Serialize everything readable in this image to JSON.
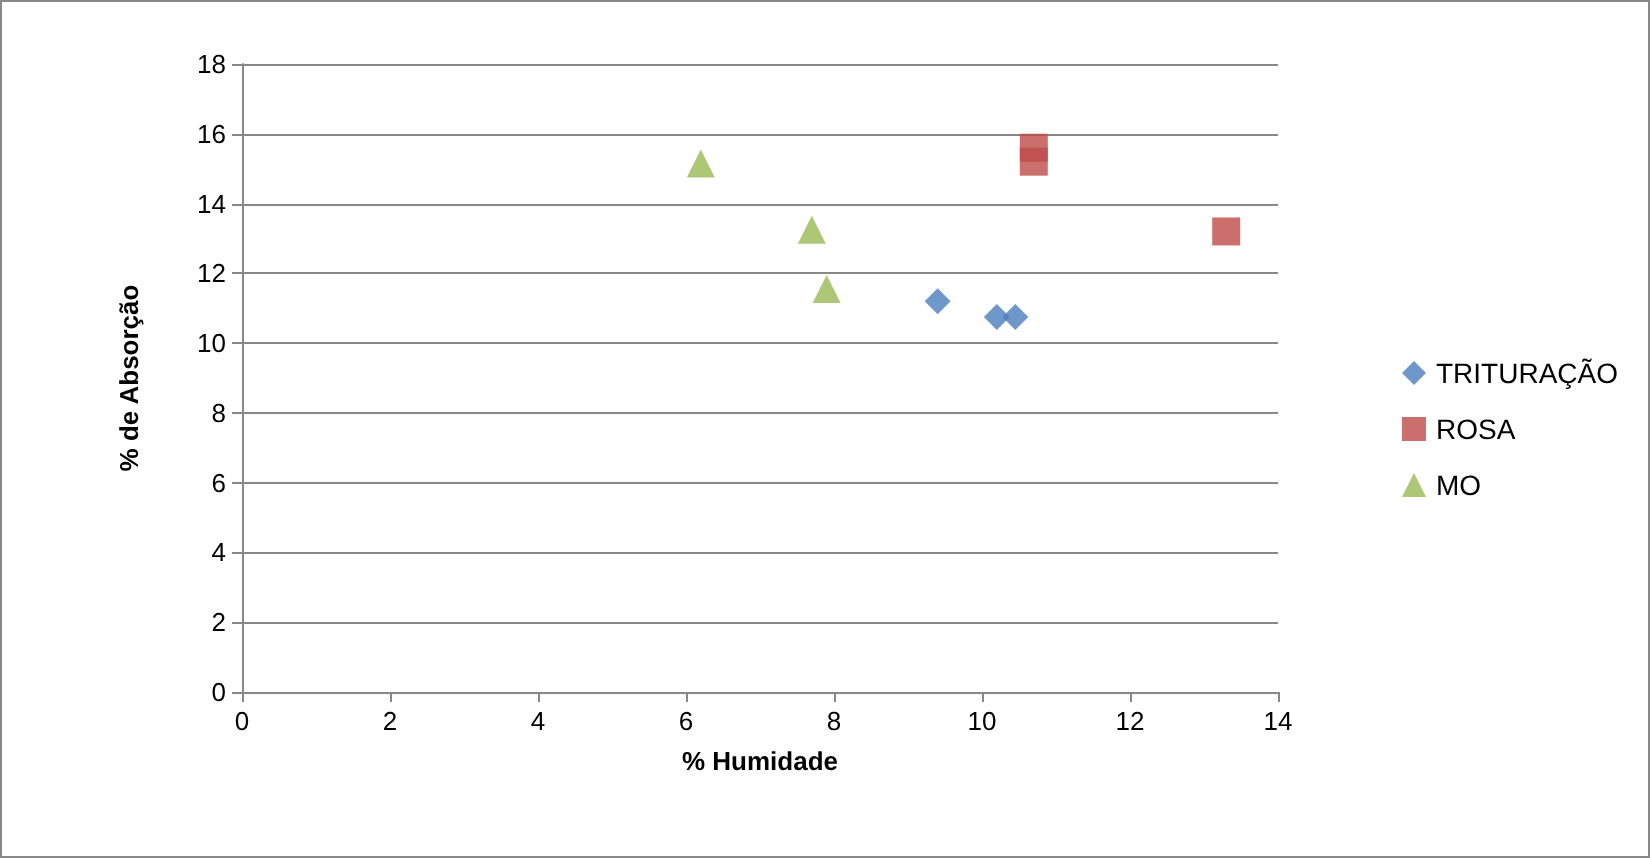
{
  "chart_data": {
    "type": "scatter",
    "xlabel": "% Humidade",
    "ylabel": "% de Absorção",
    "xlim": [
      0,
      14
    ],
    "xticks": [
      0,
      2,
      4,
      6,
      8,
      10,
      12,
      14
    ],
    "ylim": [
      0,
      18
    ],
    "yticks": [
      0,
      2,
      4,
      6,
      8,
      10,
      12,
      14,
      16,
      18
    ],
    "grid": "y",
    "legend": "right",
    "series": [
      {
        "name": "TRITURAÇÃO",
        "color": "#4a7ebb",
        "marker": "diamond",
        "x": [
          9.4,
          10.2,
          10.45
        ],
        "values": [
          11.2,
          10.75,
          10.75
        ]
      },
      {
        "name": "ROSA",
        "color": "#be4b48",
        "marker": "square",
        "x": [
          10.7,
          10.7,
          13.3
        ],
        "values": [
          15.6,
          15.2,
          13.2
        ]
      },
      {
        "name": "MO",
        "color": "#98b954",
        "marker": "triangle",
        "x": [
          6.2,
          7.7,
          7.9
        ],
        "values": [
          15.15,
          13.25,
          11.55
        ]
      }
    ]
  }
}
